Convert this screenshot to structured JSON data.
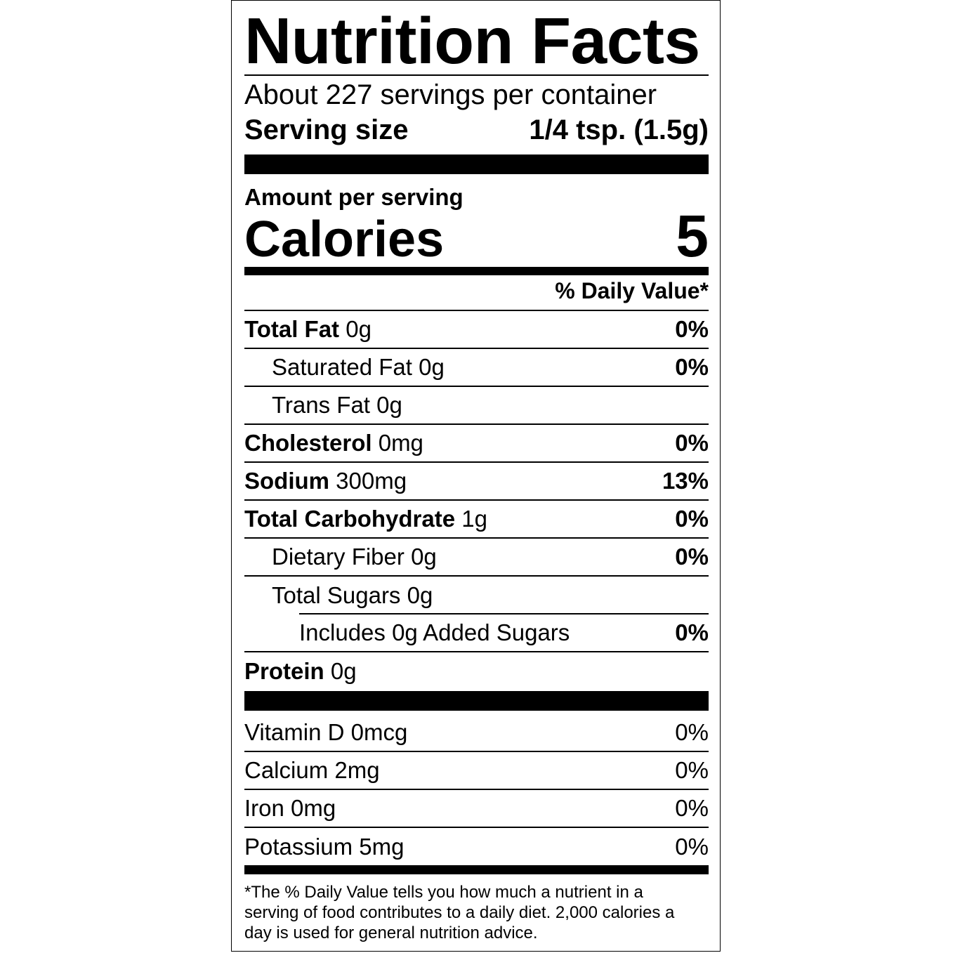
{
  "title": "Nutrition Facts",
  "servings_per_container": "About 227 servings per container",
  "serving_size": {
    "label": "Serving size",
    "value": "1/4 tsp. (1.5g)"
  },
  "amount_per_serving": "Amount per serving",
  "calories": {
    "label": "Calories",
    "value": "5"
  },
  "daily_value_header": "% Daily Value*",
  "nutrients": [
    {
      "name": "Total Fat",
      "amount": "0g",
      "dv": "0%"
    },
    {
      "name": "Saturated Fat",
      "amount": "0g",
      "dv": "0%"
    },
    {
      "name": "Trans Fat",
      "amount": "0g",
      "dv": ""
    },
    {
      "name": "Cholesterol",
      "amount": "0mg",
      "dv": "0%"
    },
    {
      "name": "Sodium",
      "amount": "300mg",
      "dv": "13%"
    },
    {
      "name": "Total Carbohydrate",
      "amount": "1g",
      "dv": "0%"
    },
    {
      "name": "Dietary Fiber",
      "amount": "0g",
      "dv": "0%"
    },
    {
      "name": "Total Sugars",
      "amount": "0g",
      "dv": ""
    },
    {
      "name": "Includes 0g Added Sugars",
      "amount": "",
      "dv": "0%"
    },
    {
      "name": "Protein",
      "amount": "0g",
      "dv": ""
    }
  ],
  "vitamins": [
    {
      "name": "Vitamin D",
      "amount": "0mcg",
      "dv": "0%"
    },
    {
      "name": "Calcium",
      "amount": "2mg",
      "dv": "0%"
    },
    {
      "name": "Iron",
      "amount": "0mg",
      "dv": "0%"
    },
    {
      "name": "Potassium",
      "amount": "5mg",
      "dv": "0%"
    }
  ],
  "footnote_lines": [
    "*The % Daily Value tells you how much a nutrient in a",
    "serving of food contributes to a daily diet. 2,000 calories a",
    "day is used for general nutrition advice."
  ]
}
